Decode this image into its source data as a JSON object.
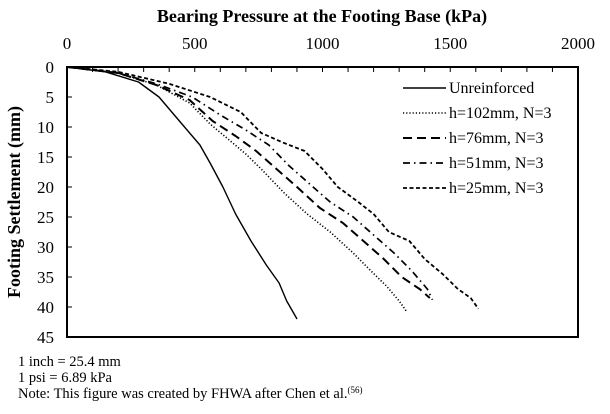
{
  "chart_data": {
    "type": "line",
    "title": "Bearing Pressure at the Footing Base (kPa)",
    "xlabel": "Bearing Pressure at the Footing Base (kPa)",
    "ylabel": "Footing Settlement (mm)",
    "xlim": [
      0,
      2000
    ],
    "ylim": [
      0,
      45
    ],
    "x_axis_position": "top",
    "y_axis_inverted": true,
    "xticks": [
      0,
      500,
      1000,
      1500,
      2000
    ],
    "xtick_labels": [
      "0",
      "500",
      "1000",
      "1500",
      "2000"
    ],
    "yticks": [
      0,
      5,
      10,
      15,
      20,
      25,
      30,
      35,
      40,
      45
    ],
    "ytick_labels": [
      "0",
      "5",
      "10",
      "15",
      "20",
      "25",
      "30",
      "35",
      "40",
      "45"
    ],
    "grid": false,
    "legend_position": "top-right",
    "series": [
      {
        "name": "Unreinforced",
        "style": "solid",
        "points": [
          [
            0,
            0
          ],
          [
            150,
            0.8
          ],
          [
            280,
            2.5
          ],
          [
            360,
            5
          ],
          [
            440,
            9
          ],
          [
            520,
            13
          ],
          [
            560,
            16
          ],
          [
            610,
            20
          ],
          [
            660,
            24.5
          ],
          [
            720,
            29
          ],
          [
            780,
            33
          ],
          [
            830,
            36
          ],
          [
            860,
            39
          ],
          [
            900,
            42
          ]
        ]
      },
      {
        "name": "h=102mm, N=3",
        "style": "dotted",
        "points": [
          [
            0,
            0
          ],
          [
            200,
            1
          ],
          [
            350,
            3
          ],
          [
            480,
            6
          ],
          [
            560,
            9.5
          ],
          [
            630,
            12
          ],
          [
            700,
            14.5
          ],
          [
            760,
            17
          ],
          [
            850,
            21
          ],
          [
            940,
            24.5
          ],
          [
            1030,
            27.5
          ],
          [
            1120,
            31
          ],
          [
            1190,
            34
          ],
          [
            1250,
            36.5
          ],
          [
            1300,
            39
          ],
          [
            1330,
            40.8
          ]
        ]
      },
      {
        "name": "h=76mm, N=3",
        "style": "long-dash",
        "points": [
          [
            0,
            0
          ],
          [
            200,
            1
          ],
          [
            350,
            3
          ],
          [
            480,
            5.5
          ],
          [
            570,
            9
          ],
          [
            660,
            11.5
          ],
          [
            740,
            14
          ],
          [
            820,
            17
          ],
          [
            900,
            20
          ],
          [
            990,
            23.5
          ],
          [
            1080,
            26
          ],
          [
            1160,
            29
          ],
          [
            1240,
            32
          ],
          [
            1310,
            35
          ],
          [
            1380,
            37
          ],
          [
            1420,
            38.5
          ]
        ]
      },
      {
        "name": "h=51mm, N=3",
        "style": "dash-dot",
        "points": [
          [
            0,
            0
          ],
          [
            200,
            1
          ],
          [
            350,
            2.8
          ],
          [
            490,
            5
          ],
          [
            600,
            8
          ],
          [
            700,
            10.5
          ],
          [
            790,
            13
          ],
          [
            870,
            16.5
          ],
          [
            950,
            19.5
          ],
          [
            1030,
            22.5
          ],
          [
            1120,
            25
          ],
          [
            1200,
            28
          ],
          [
            1280,
            31
          ],
          [
            1350,
            34
          ],
          [
            1410,
            37
          ],
          [
            1430,
            38.8
          ]
        ]
      },
      {
        "name": "h=25mm, N=3",
        "style": "short-dash",
        "points": [
          [
            0,
            0
          ],
          [
            200,
            0.8
          ],
          [
            400,
            2.8
          ],
          [
            560,
            5
          ],
          [
            680,
            7.5
          ],
          [
            760,
            11
          ],
          [
            840,
            12.5
          ],
          [
            930,
            14
          ],
          [
            1000,
            17
          ],
          [
            1060,
            20
          ],
          [
            1140,
            22.5
          ],
          [
            1200,
            24.5
          ],
          [
            1260,
            27.5
          ],
          [
            1340,
            29
          ],
          [
            1400,
            32
          ],
          [
            1470,
            34.5
          ],
          [
            1530,
            37
          ],
          [
            1580,
            38.5
          ],
          [
            1610,
            40.3
          ]
        ]
      }
    ]
  },
  "notes": {
    "line1": "1 inch = 25.4 mm",
    "line2": "1 psi = 6.89 kPa",
    "line3": "Note: This figure was created by FHWA after Chen et al.",
    "line3_superscript": "(56)"
  }
}
